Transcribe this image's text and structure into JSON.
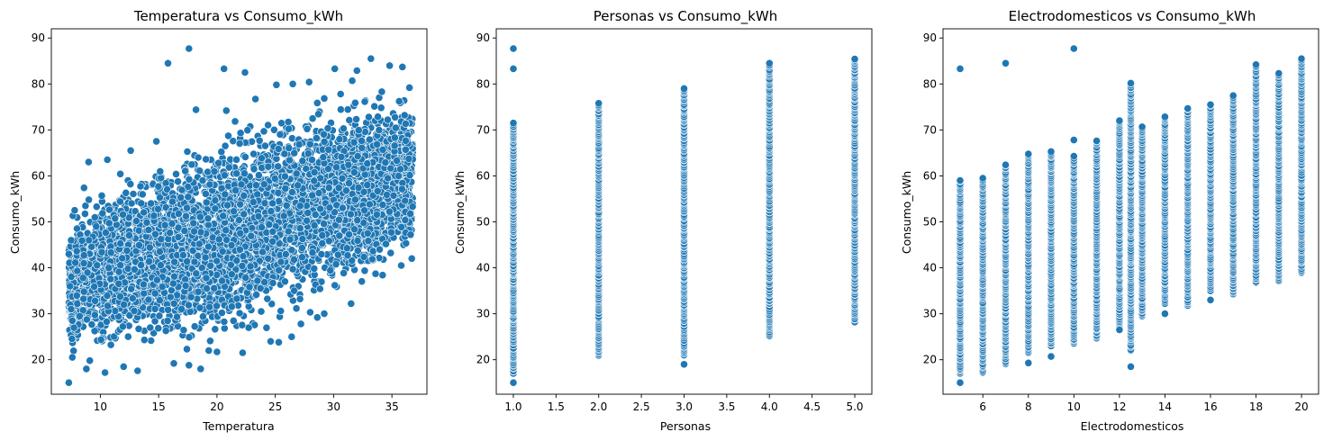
{
  "chart_data": [
    {
      "type": "scatter",
      "title": "Temperatura vs Consumo_kWh",
      "xlabel": "Temperatura",
      "ylabel": "Consumo_kWh",
      "xlim": [
        5.8,
        38.0
      ],
      "ylim": [
        12.5,
        92.0
      ],
      "xticks": [
        10,
        15,
        20,
        25,
        30,
        35
      ],
      "yticks": [
        20,
        30,
        40,
        50,
        60,
        70,
        80,
        90
      ],
      "xtick_labels": [
        "10",
        "15",
        "20",
        "25",
        "30",
        "35"
      ],
      "ytick_labels": [
        "20",
        "30",
        "40",
        "50",
        "60",
        "70",
        "80",
        "90"
      ],
      "color": "#1f77b4",
      "grid": false,
      "points": [
        [
          7.3,
          15.0
        ],
        [
          8.8,
          18.0
        ],
        [
          10.4,
          17.2
        ],
        [
          13.2,
          17.6
        ],
        [
          16.3,
          19.2
        ],
        [
          18.6,
          18.0
        ],
        [
          7.6,
          20.5
        ],
        [
          9.1,
          19.8
        ],
        [
          12.0,
          18.5
        ],
        [
          17.6,
          18.8
        ],
        [
          15.8,
          84.5
        ],
        [
          17.6,
          87.7
        ],
        [
          20.6,
          83.3
        ],
        [
          22.4,
          82.5
        ],
        [
          33.2,
          85.5
        ],
        [
          30.1,
          83.3
        ],
        [
          34.8,
          84.0
        ],
        [
          35.9,
          83.7
        ],
        [
          32.0,
          82.9
        ],
        [
          24.6,
          24.0
        ],
        [
          25.3,
          23.8
        ],
        [
          26.4,
          25.0
        ],
        [
          29.2,
          30.0
        ],
        [
          31.5,
          32.2
        ],
        [
          34.2,
          38.4
        ],
        [
          35.8,
          40.5
        ],
        [
          36.7,
          42.0
        ],
        [
          36.6,
          47.2
        ],
        [
          36.5,
          79.2
        ],
        [
          20.8,
          74.2
        ],
        [
          18.2,
          74.4
        ],
        [
          14.8,
          67.5
        ],
        [
          12.6,
          65.5
        ],
        [
          10.6,
          63.5
        ],
        [
          9.0,
          63.0
        ],
        [
          8.6,
          57.4
        ],
        [
          7.8,
          52.5
        ],
        [
          7.5,
          46.0
        ],
        [
          7.3,
          43.0
        ],
        [
          7.4,
          36.0
        ],
        [
          7.5,
          31.0
        ],
        [
          7.6,
          28.5
        ],
        [
          22.2,
          21.5
        ],
        [
          20.0,
          21.7
        ],
        [
          19.3,
          22.0
        ],
        [
          27.2,
          27.8
        ],
        [
          28.6,
          29.2
        ],
        [
          33.6,
          38.7
        ],
        [
          27.9,
          80.4
        ],
        [
          26.5,
          80.0
        ],
        [
          25.1,
          79.8
        ],
        [
          23.3,
          76.7
        ],
        [
          30.6,
          77.8
        ],
        [
          31.6,
          80.7
        ]
      ],
      "cloud": {
        "x_range": [
          7.3,
          36.8
        ],
        "lower_edge": [
          [
            7.3,
            20.0
          ],
          [
            12.0,
            20.0
          ],
          [
            18.0,
            22.0
          ],
          [
            22.0,
            24.0
          ],
          [
            26.0,
            28.0
          ],
          [
            30.0,
            32.0
          ],
          [
            34.0,
            37.0
          ],
          [
            36.8,
            41.0
          ]
        ],
        "upper_edge": [
          [
            7.3,
            52.0
          ],
          [
            10.0,
            58.0
          ],
          [
            14.0,
            63.0
          ],
          [
            18.0,
            68.0
          ],
          [
            22.0,
            72.0
          ],
          [
            26.0,
            76.0
          ],
          [
            30.0,
            79.0
          ],
          [
            34.0,
            80.0
          ],
          [
            36.8,
            79.0
          ]
        ],
        "count": 5200
      }
    },
    {
      "type": "scatter",
      "title": "Personas vs Consumo_kWh",
      "xlabel": "Personas",
      "ylabel": "Consumo_kWh",
      "xlim": [
        0.8,
        5.2
      ],
      "ylim": [
        12.5,
        92.0
      ],
      "xticks": [
        1.0,
        1.5,
        2.0,
        2.5,
        3.0,
        3.5,
        4.0,
        4.5,
        5.0
      ],
      "yticks": [
        20,
        30,
        40,
        50,
        60,
        70,
        80,
        90
      ],
      "xtick_labels": [
        "1.0",
        "1.5",
        "2.0",
        "2.5",
        "3.0",
        "3.5",
        "4.0",
        "4.5",
        "5.0"
      ],
      "ytick_labels": [
        "20",
        "30",
        "40",
        "50",
        "60",
        "70",
        "80",
        "90"
      ],
      "color": "#1f77b4",
      "grid": false,
      "columns": [
        {
          "x": 1,
          "min": 17.0,
          "max": 71.5,
          "outliers": [
            15.0,
            83.3,
            87.7
          ]
        },
        {
          "x": 2,
          "min": 20.8,
          "max": 75.9,
          "outliers": []
        },
        {
          "x": 3,
          "min": 21.0,
          "max": 79.0,
          "outliers": [
            19.0
          ]
        },
        {
          "x": 4,
          "min": 25.0,
          "max": 84.5,
          "outliers": []
        },
        {
          "x": 5,
          "min": 28.0,
          "max": 85.5,
          "outliers": []
        }
      ]
    },
    {
      "type": "scatter",
      "title": "Electrodomesticos vs Consumo_kWh",
      "xlabel": "Electrodomesticos",
      "ylabel": "Consumo_kWh",
      "xlim": [
        4.25,
        20.75
      ],
      "ylim": [
        12.5,
        92.0
      ],
      "xticks": [
        6,
        8,
        10,
        12,
        14,
        16,
        18,
        20
      ],
      "yticks": [
        20,
        30,
        40,
        50,
        60,
        70,
        80,
        90
      ],
      "xtick_labels": [
        "6",
        "8",
        "10",
        "12",
        "14",
        "16",
        "18",
        "20"
      ],
      "ytick_labels": [
        "20",
        "30",
        "40",
        "50",
        "60",
        "70",
        "80",
        "90"
      ],
      "color": "#1f77b4",
      "grid": false,
      "columns": [
        {
          "x": 5,
          "min": 17.0,
          "max": 59.0,
          "outliers": [
            15.0,
            83.3
          ]
        },
        {
          "x": 6,
          "min": 17.2,
          "max": 59.5,
          "outliers": []
        },
        {
          "x": 7,
          "min": 19.0,
          "max": 62.5,
          "outliers": [
            84.5
          ]
        },
        {
          "x": 8,
          "min": 21.5,
          "max": 64.8,
          "outliers": [
            19.3
          ]
        },
        {
          "x": 9,
          "min": 23.0,
          "max": 65.3,
          "outliers": [
            20.7
          ]
        },
        {
          "x": 10,
          "min": 23.5,
          "max": 64.3,
          "outliers": [
            67.8,
            87.7
          ]
        },
        {
          "x": 11,
          "min": 24.7,
          "max": 67.7,
          "outliers": []
        },
        {
          "x": 12,
          "min": 27.0,
          "max": 72.0,
          "outliers": [
            26.5
          ]
        },
        {
          "x": 12.5,
          "min": 22.0,
          "max": 80.3,
          "outliers": [
            18.5
          ]
        },
        {
          "x": 13,
          "min": 29.5,
          "max": 70.7,
          "outliers": []
        },
        {
          "x": 14,
          "min": 32.0,
          "max": 73.0,
          "outliers": [
            30.0
          ]
        },
        {
          "x": 15,
          "min": 31.7,
          "max": 74.7,
          "outliers": []
        },
        {
          "x": 16,
          "min": 35.0,
          "max": 75.5,
          "outliers": [
            33.0
          ]
        },
        {
          "x": 17,
          "min": 34.2,
          "max": 77.5,
          "outliers": []
        },
        {
          "x": 18,
          "min": 36.8,
          "max": 84.2,
          "outliers": []
        },
        {
          "x": 19,
          "min": 37.2,
          "max": 82.3,
          "outliers": []
        },
        {
          "x": 20,
          "min": 38.9,
          "max": 85.5,
          "outliers": []
        }
      ]
    }
  ]
}
